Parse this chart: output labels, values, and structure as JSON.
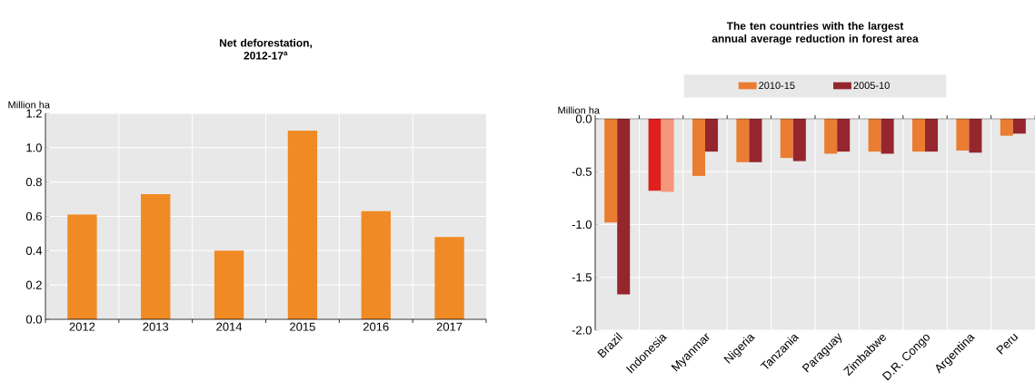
{
  "chart_data": [
    {
      "type": "bar",
      "title": "Net deforestation, 2012-17$^{a}$",
      "ylabel": "Million ha",
      "categories": [
        "2012",
        "2013",
        "2014",
        "2015",
        "2016",
        "2017"
      ],
      "values": [
        0.61,
        0.73,
        0.4,
        1.1,
        0.63,
        0.48
      ],
      "color": "#f08a24",
      "ylim": [
        0,
        1.2
      ],
      "yticks": [
        {
          "value": 0,
          "label": "0.0"
        },
        0.2,
        0.4,
        0.6,
        0.8,
        {
          "value": 1,
          "label": "1.0"
        },
        1.2
      ],
      "grid": true,
      "legend": false
    },
    {
      "type": "bar",
      "title": "The ten countries with the largest annual average reduction in forest area",
      "ylabel": "Million ha",
      "categories": [
        "Brazil",
        "Indonesia",
        "Myanmar",
        "Nigeria",
        "Tanzania",
        "Paraguay",
        "Zimbabwe",
        "D.R. Congo",
        "Argentina",
        "Peru"
      ],
      "series": [
        {
          "name": "2010-15",
          "color": "#ea7d31",
          "values": [
            -0.98,
            -0.68,
            -0.54,
            -0.41,
            -0.37,
            -0.33,
            -0.31,
            -0.31,
            -0.3,
            -0.16
          ],
          "colors": [
            "#ea7d31",
            "#e0201f",
            "#ea7d31",
            "#ea7d31",
            "#ea7d31",
            "#ea7d31",
            "#ea7d31",
            "#ea7d31",
            "#ea7d31",
            "#ea7d31"
          ]
        },
        {
          "name": "2005-10",
          "color": "#95262e",
          "values": [
            -1.66,
            -0.69,
            -0.31,
            -0.41,
            -0.4,
            -0.31,
            -0.33,
            -0.31,
            -0.32,
            -0.14
          ],
          "colors": [
            "#95262e",
            "#f5977a",
            "#95262e",
            "#95262e",
            "#95262e",
            "#95262e",
            "#95262e",
            "#95262e",
            "#95262e",
            "#95262e"
          ]
        }
      ],
      "ylim": [
        -2,
        0
      ],
      "yticks": [
        {
          "value": 0,
          "label": "0.0"
        },
        -0.5,
        {
          "value": -1,
          "label": "-1.0"
        },
        -1.5,
        {
          "value": -2,
          "label": "-2.0"
        }
      ],
      "grid": true,
      "legend": "top"
    }
  ]
}
